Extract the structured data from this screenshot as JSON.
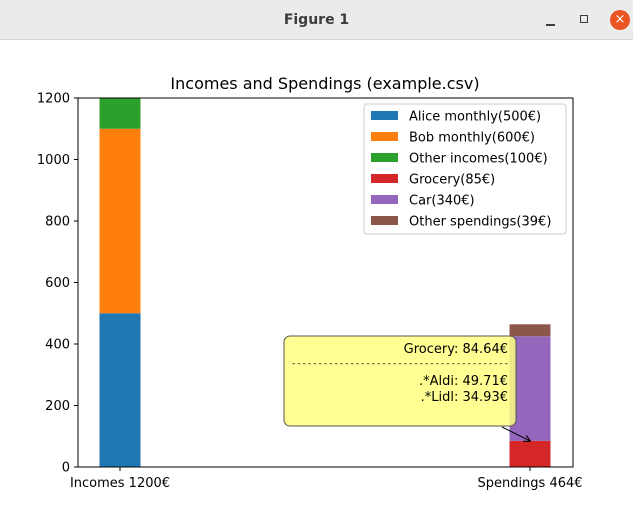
{
  "window": {
    "title": "Figure 1",
    "minimize_glyph": "—",
    "maximize_glyph": "☐",
    "close_glyph": "×"
  },
  "chart_data": {
    "type": "bar",
    "stacked": true,
    "title": "Incomes and Spendings (example.csv)",
    "xlabel": "",
    "ylabel": "",
    "categories": [
      "Incomes 1200€",
      "Spendings 464€"
    ],
    "ylim": [
      0,
      1200
    ],
    "yticks": [
      0,
      200,
      400,
      600,
      800,
      1000,
      1200
    ],
    "grid": false,
    "legend_position": "top-right",
    "series": [
      {
        "name": "Alice monthly(500€)",
        "color": "#1f77b4",
        "values": [
          500,
          0
        ]
      },
      {
        "name": "Bob monthly(600€)",
        "color": "#ff7f0e",
        "values": [
          600,
          0
        ]
      },
      {
        "name": "Other incomes(100€)",
        "color": "#2ca02c",
        "values": [
          100,
          0
        ]
      },
      {
        "name": "Grocery(85€)",
        "color": "#d62728",
        "values": [
          0,
          85
        ]
      },
      {
        "name": "Car(340€)",
        "color": "#9467bd",
        "values": [
          0,
          340
        ]
      },
      {
        "name": "Other spendings(39€)",
        "color": "#8c564b",
        "values": [
          0,
          39
        ]
      }
    ],
    "annotation": {
      "category": "Spendings 464€",
      "value": 84.64,
      "lines": [
        "Grocery: 84.64€",
        "-----------------------------------------",
        ".*Aldi: 49.71€",
        ".*Lidl: 34.93€"
      ],
      "background": "#ffff80",
      "border": "#555555"
    }
  }
}
